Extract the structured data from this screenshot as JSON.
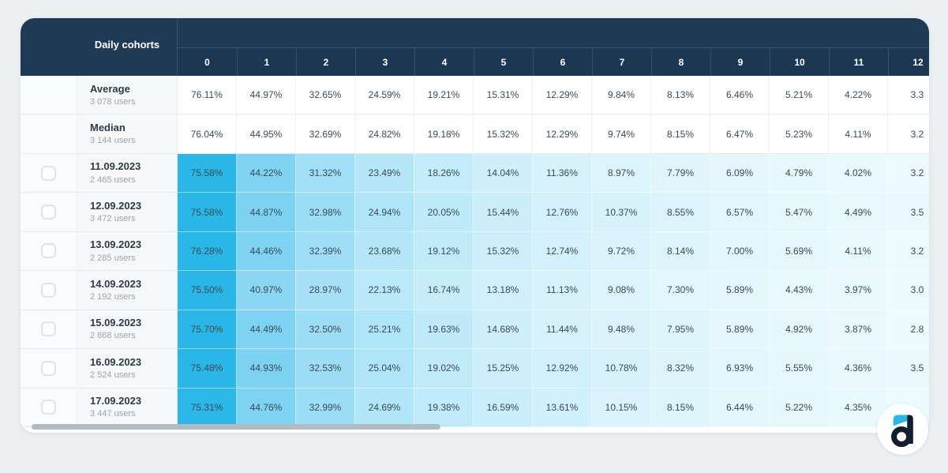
{
  "colors": {
    "page_bg": "#edf0f2",
    "card_bg": "#ffffff",
    "header_bg": "#1e3a55",
    "header_text": "#ffffff",
    "cell_text": "#3a4a56",
    "row_label_text": "#2c3a47",
    "row_sublabel_text": "#97a4b1",
    "label_col_bg": "#f7f8f9",
    "checkbox_col_bg": "#fafbfc",
    "scrollbar_thumb": "#b2bac2",
    "heat_max": "#29b7e8",
    "heat_min": "#edfafe",
    "logo_blue": "#29b6e8",
    "logo_dark": "#131f2d"
  },
  "table": {
    "header": {
      "label": "Daily cohorts",
      "columns": [
        "0",
        "1",
        "2",
        "3",
        "4",
        "5",
        "6",
        "7",
        "8",
        "9",
        "10",
        "11",
        "12"
      ]
    },
    "summary_rows": [
      {
        "label": "Average",
        "users": "3 078 users",
        "values": [
          "76.11%",
          "44.97%",
          "32.65%",
          "24.59%",
          "19.21%",
          "15.31%",
          "12.29%",
          "9.84%",
          "8.13%",
          "6.46%",
          "5.21%",
          "4.22%",
          "3.3"
        ]
      },
      {
        "label": "Median",
        "users": "3 144 users",
        "values": [
          "76.04%",
          "44.95%",
          "32.69%",
          "24.82%",
          "19.18%",
          "15.32%",
          "12.29%",
          "9.74%",
          "8.15%",
          "6.47%",
          "5.23%",
          "4.11%",
          "3.2"
        ]
      }
    ],
    "cohort_rows": [
      {
        "date": "11.09.2023",
        "users": "2 465 users",
        "checked": false,
        "values": [
          "75.58%",
          "44.22%",
          "31.32%",
          "23.49%",
          "18.26%",
          "14.04%",
          "11.36%",
          "8.97%",
          "7.79%",
          "6.09%",
          "4.79%",
          "4.02%",
          "3.2"
        ]
      },
      {
        "date": "12.09.2023",
        "users": "3 472 users",
        "checked": false,
        "values": [
          "75.58%",
          "44.87%",
          "32.98%",
          "24.94%",
          "20.05%",
          "15.44%",
          "12.76%",
          "10.37%",
          "8.55%",
          "6.57%",
          "5.47%",
          "4.49%",
          "3.5"
        ]
      },
      {
        "date": "13.09.2023",
        "users": "2 285 users",
        "checked": false,
        "values": [
          "76.28%",
          "44.46%",
          "32.39%",
          "23.68%",
          "19.12%",
          "15.32%",
          "12.74%",
          "9.72%",
          "8.14%",
          "7.00%",
          "5.69%",
          "4.11%",
          "3.2"
        ]
      },
      {
        "date": "14.09.2023",
        "users": "2 192 users",
        "checked": false,
        "values": [
          "75.50%",
          "40.97%",
          "28.97%",
          "22.13%",
          "16.74%",
          "13.18%",
          "11.13%",
          "9.08%",
          "7.30%",
          "5.89%",
          "4.43%",
          "3.97%",
          "3.0"
        ]
      },
      {
        "date": "15.09.2023",
        "users": "2 868 users",
        "checked": false,
        "values": [
          "75.70%",
          "44.49%",
          "32.50%",
          "25.21%",
          "19.63%",
          "14.68%",
          "11.44%",
          "9.48%",
          "7.95%",
          "5.89%",
          "4.92%",
          "3.87%",
          "2.8"
        ]
      },
      {
        "date": "16.09.2023",
        "users": "2 524 users",
        "checked": false,
        "values": [
          "75.48%",
          "44.93%",
          "32.53%",
          "25.04%",
          "19.02%",
          "15.25%",
          "12.92%",
          "10.78%",
          "8.32%",
          "6.93%",
          "5.55%",
          "4.36%",
          "3.5"
        ]
      },
      {
        "date": "17.09.2023",
        "users": "3 447 users",
        "checked": false,
        "values": [
          "75.31%",
          "44.76%",
          "32.99%",
          "24.69%",
          "19.38%",
          "16.59%",
          "13.61%",
          "10.15%",
          "8.15%",
          "6.44%",
          "5.22%",
          "4.35%",
          ""
        ]
      }
    ],
    "heat_scale": [
      {
        "value": 76,
        "color": "#29b7e8"
      },
      {
        "value": 45,
        "color": "#7dd2f2"
      },
      {
        "value": 41,
        "color": "#8bd7f3"
      },
      {
        "value": 33,
        "color": "#9cdef6"
      },
      {
        "value": 29,
        "color": "#a6e1f7"
      },
      {
        "value": 25,
        "color": "#b0e5f8"
      },
      {
        "value": 22,
        "color": "#b9e8f9"
      },
      {
        "value": 19,
        "color": "#c2ebfa"
      },
      {
        "value": 16.5,
        "color": "#c9edfa"
      },
      {
        "value": 15,
        "color": "#cdeffb"
      },
      {
        "value": 13,
        "color": "#d2f0fb"
      },
      {
        "value": 11.3,
        "color": "#d7f2fb"
      },
      {
        "value": 10,
        "color": "#daf3fc"
      },
      {
        "value": 9,
        "color": "#dcf4fc"
      },
      {
        "value": 8,
        "color": "#dff5fc"
      },
      {
        "value": 7,
        "color": "#e2f6fd"
      },
      {
        "value": 6,
        "color": "#e5f7fd"
      },
      {
        "value": 5,
        "color": "#e8f8fd"
      },
      {
        "value": 4.2,
        "color": "#eaf9fd"
      },
      {
        "value": 3.5,
        "color": "#ebf9fe"
      },
      {
        "value": 2.8,
        "color": "#edfafe"
      }
    ]
  }
}
